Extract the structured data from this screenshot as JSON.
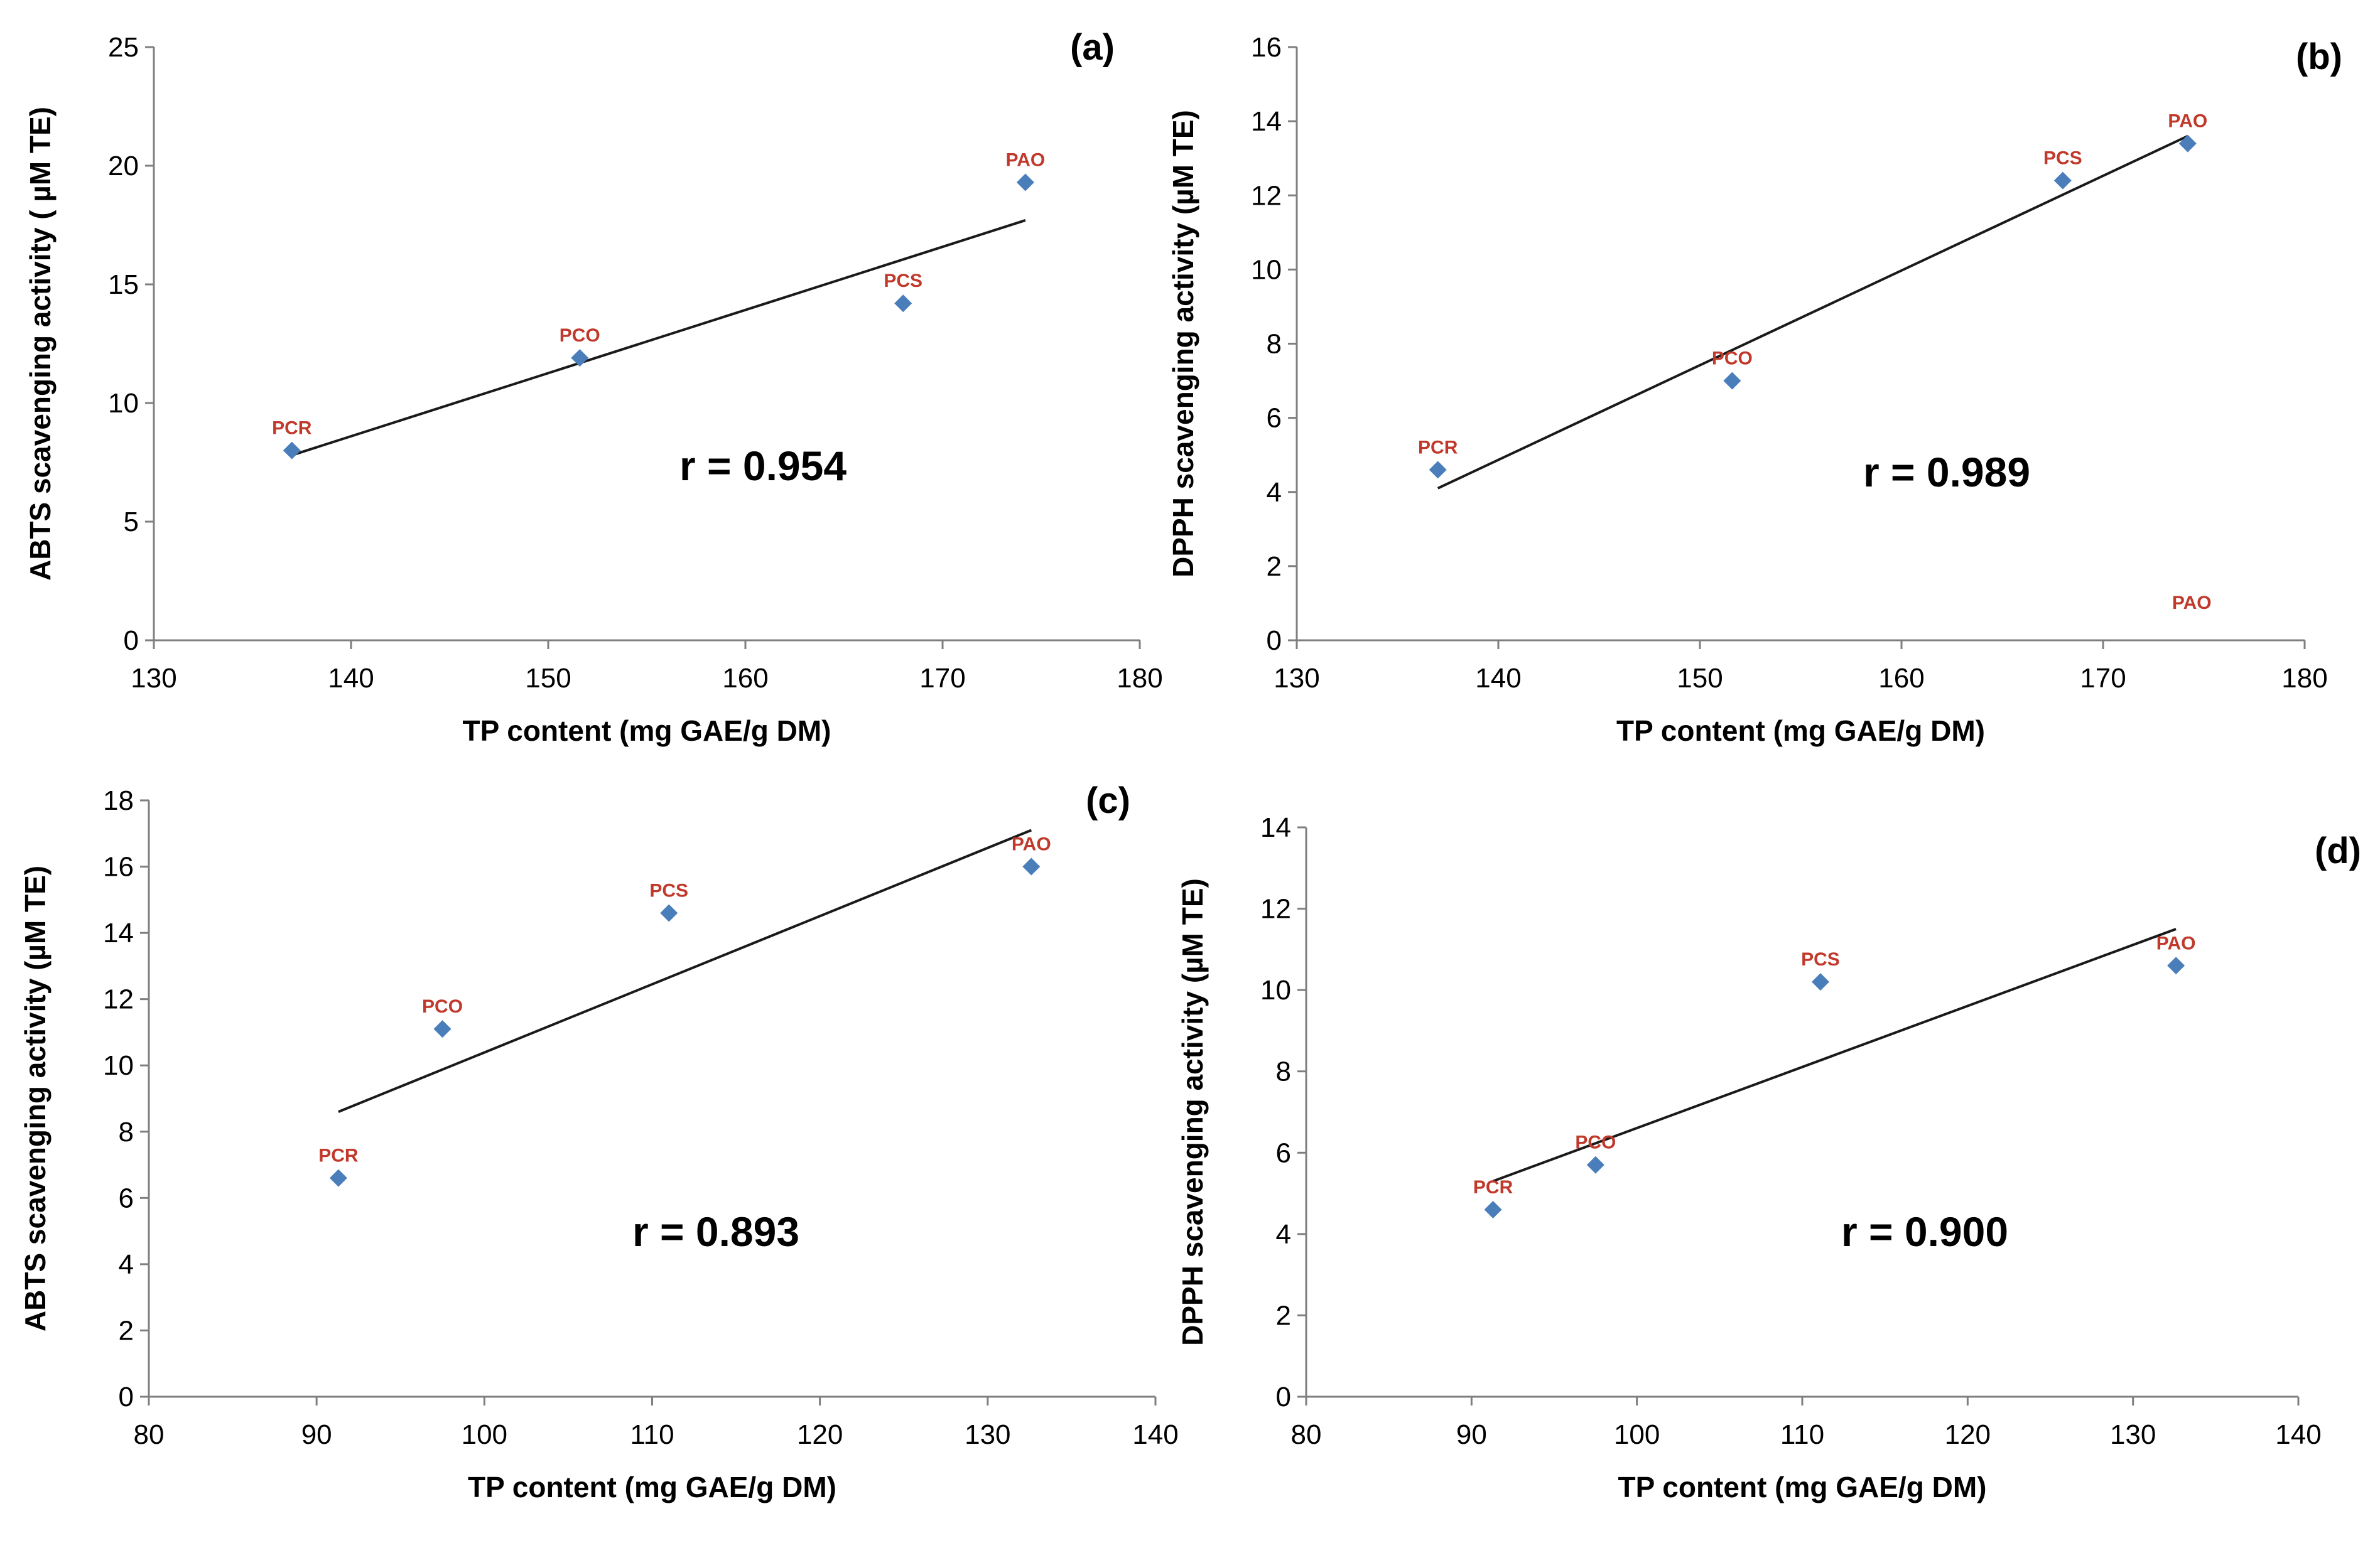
{
  "chart_data": [
    {
      "type": "scatter",
      "panel_label": "(a)",
      "xlabel": "TP content (mg GAE/g DM)",
      "ylabel": "ABTS scavenging activity ( µM TE)",
      "xlim": [
        130,
        180
      ],
      "ylim": [
        0,
        25
      ],
      "xticks": [
        130,
        140,
        150,
        160,
        170,
        180
      ],
      "yticks": [
        0,
        5,
        10,
        15,
        20,
        25
      ],
      "points": [
        {
          "label": "PCR",
          "x": 137.0,
          "y": 8.0
        },
        {
          "label": "PCO",
          "x": 151.6,
          "y": 11.9
        },
        {
          "label": "PCS",
          "x": 168.0,
          "y": 14.2
        },
        {
          "label": "PAO",
          "x": 174.2,
          "y": 19.3
        }
      ],
      "trendline": {
        "x1": 137.0,
        "y1": 7.8,
        "x2": 174.2,
        "y2": 17.7
      },
      "annotation": "r = 0.954",
      "extra_labels": [],
      "grid": false,
      "legend": "none"
    },
    {
      "type": "scatter",
      "panel_label": "(b)",
      "xlabel": "TP content (mg GAE/g DM)",
      "ylabel": "DPPH scavenging activity (µM TE)",
      "xlim": [
        130,
        180
      ],
      "ylim": [
        0,
        16
      ],
      "xticks": [
        130,
        140,
        150,
        160,
        170,
        180
      ],
      "yticks": [
        0,
        2,
        4,
        6,
        8,
        10,
        12,
        14,
        16
      ],
      "points": [
        {
          "label": "PCR",
          "x": 137.0,
          "y": 4.6
        },
        {
          "label": "PCO",
          "x": 151.6,
          "y": 7.0
        },
        {
          "label": "PCS",
          "x": 168.0,
          "y": 12.4
        },
        {
          "label": "PAO",
          "x": 174.2,
          "y": 13.4
        }
      ],
      "trendline": {
        "x1": 137.0,
        "y1": 4.1,
        "x2": 174.2,
        "y2": 13.6
      },
      "annotation": "r = 0.989",
      "extra_labels": [
        {
          "text": "PAO",
          "x": 174.4,
          "y": 0.85
        }
      ],
      "grid": false,
      "legend": "none"
    },
    {
      "type": "scatter",
      "panel_label": "(c)",
      "xlabel": "TP content (mg GAE/g DM)",
      "ylabel": "ABTS scavenging activity (µM TE)",
      "xlim": [
        80,
        140
      ],
      "ylim": [
        0,
        18
      ],
      "xticks": [
        80,
        90,
        100,
        110,
        120,
        130,
        140
      ],
      "yticks": [
        0,
        2,
        4,
        6,
        8,
        10,
        12,
        14,
        16,
        18
      ],
      "points": [
        {
          "label": "PCR",
          "x": 91.3,
          "y": 6.6
        },
        {
          "label": "PCO",
          "x": 97.5,
          "y": 11.1
        },
        {
          "label": "PCS",
          "x": 111.0,
          "y": 14.6
        },
        {
          "label": "PAO",
          "x": 132.6,
          "y": 16.0
        }
      ],
      "trendline": {
        "x1": 91.3,
        "y1": 8.6,
        "x2": 132.6,
        "y2": 17.1
      },
      "annotation": "r = 0.893",
      "extra_labels": [],
      "grid": false,
      "legend": "none"
    },
    {
      "type": "scatter",
      "panel_label": "(d)",
      "xlabel": "TP content (mg GAE/g DM)",
      "ylabel": "DPPH scavenging activity (µM TE)",
      "xlim": [
        80,
        140
      ],
      "ylim": [
        0,
        14
      ],
      "xticks": [
        80,
        90,
        100,
        110,
        120,
        130,
        140
      ],
      "yticks": [
        0,
        2,
        4,
        6,
        8,
        10,
        12,
        14
      ],
      "points": [
        {
          "label": "PCR",
          "x": 91.3,
          "y": 4.6
        },
        {
          "label": "PCO",
          "x": 97.5,
          "y": 5.7
        },
        {
          "label": "PCS",
          "x": 111.1,
          "y": 10.2
        },
        {
          "label": "PAO",
          "x": 132.6,
          "y": 10.6
        }
      ],
      "trendline": {
        "x1": 91.3,
        "y1": 5.3,
        "x2": 132.6,
        "y2": 11.5
      },
      "annotation": "r = 0.900",
      "extra_labels": [],
      "grid": false,
      "legend": "none"
    }
  ],
  "colors": {
    "marker": "#4a7ebb",
    "point_label": "#c0392b",
    "trendline": "#1a1a1a",
    "axis": "#7f7f7f",
    "text": "#000000"
  }
}
